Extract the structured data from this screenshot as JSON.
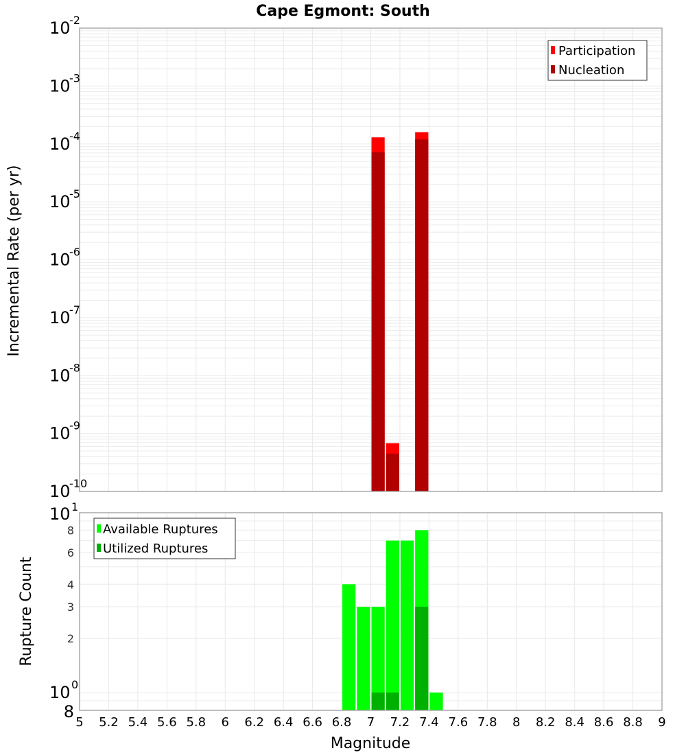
{
  "chart_data": [
    {
      "type": "bar",
      "title": "Cape Egmont: South",
      "xlabel": "",
      "ylabel": "Incremental Rate (per yr)",
      "yscale": "log",
      "ylim": [
        1e-10,
        0.01
      ],
      "xlim": [
        5,
        9
      ],
      "grid": true,
      "bin_width": 0.1,
      "legend_position": "top-right",
      "x": [
        7.05,
        7.15,
        7.35
      ],
      "series": [
        {
          "name": "Participation",
          "color": "#ff0000",
          "values": [
            0.00013,
            6.8e-10,
            0.00016
          ]
        },
        {
          "name": "Nucleation",
          "color": "#b00000",
          "values": [
            7.2e-05,
            4.5e-10,
            0.00012
          ]
        }
      ],
      "ytick_exponents": [
        -2,
        -3,
        -4,
        -5,
        -6,
        -7,
        -8,
        -9,
        -10
      ]
    },
    {
      "type": "bar",
      "title": "",
      "xlabel": "Magnitude",
      "ylabel": "Rupture Count",
      "yscale": "log",
      "ylim": [
        0.8,
        10
      ],
      "xlim": [
        5,
        9
      ],
      "grid": true,
      "bin_width": 0.1,
      "legend_position": "top-left",
      "x": [
        6.85,
        6.95,
        7.05,
        7.15,
        7.25,
        7.35,
        7.45
      ],
      "series": [
        {
          "name": "Available Ruptures",
          "color": "#00ff00",
          "values": [
            4,
            3,
            3,
            7,
            7,
            8,
            1
          ]
        },
        {
          "name": "Utilized Ruptures",
          "color": "#00b000",
          "values": [
            0,
            0,
            1,
            1,
            0,
            3,
            0
          ]
        }
      ],
      "ytick_labels": [
        "10^1",
        "8",
        "6",
        "4",
        "3",
        "2",
        "10^0",
        "8"
      ],
      "xticks": [
        "5",
        "5.2",
        "5.4",
        "5.6",
        "5.8",
        "6",
        "6.2",
        "6.4",
        "6.6",
        "6.8",
        "7",
        "7.2",
        "7.4",
        "7.6",
        "7.8",
        "8",
        "8.2",
        "8.4",
        "8.6",
        "8.8",
        "9"
      ]
    }
  ]
}
